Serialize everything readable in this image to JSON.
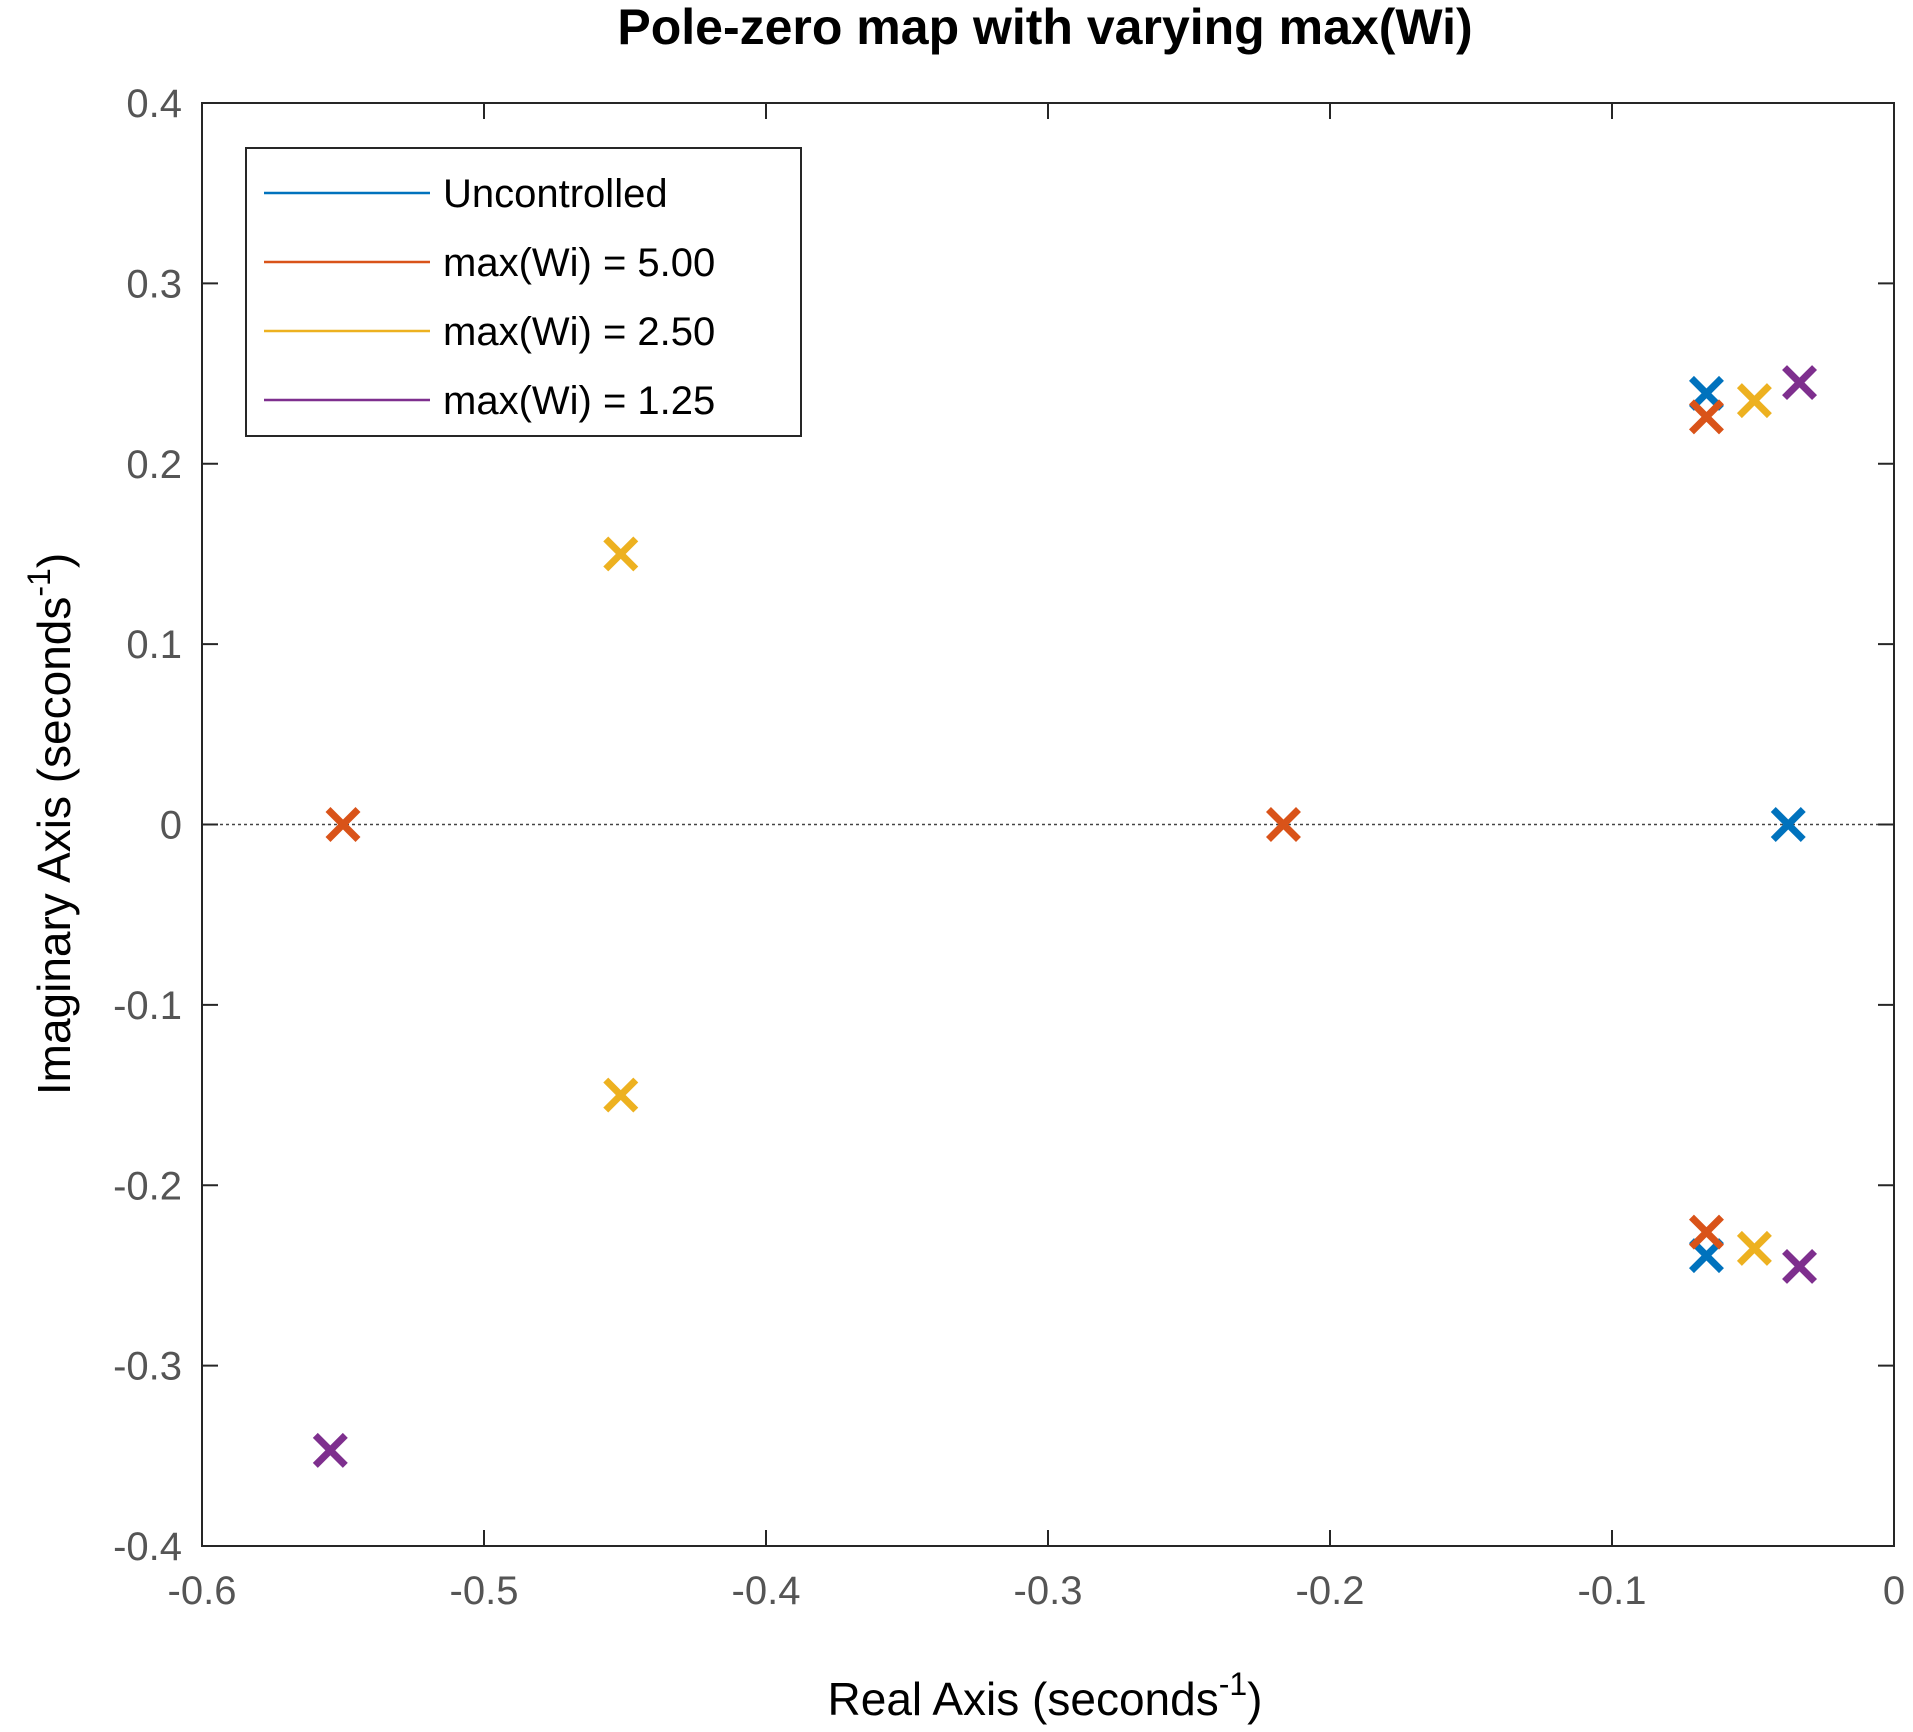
{
  "chart_data": {
    "type": "scatter",
    "title": "Pole-zero map with varying max(Wi)",
    "xlabel": "Real Axis (seconds",
    "xlabel_sup": "-1",
    "xlabel_end": ")",
    "ylabel": "Imaginary Axis (seconds",
    "ylabel_sup": "-1",
    "ylabel_end": ")",
    "xlim": [
      -0.6,
      0
    ],
    "ylim": [
      -0.4,
      0.4
    ],
    "xticks": [
      "-0.6",
      "-0.5",
      "-0.4",
      "-0.3",
      "-0.2",
      "-0.1",
      "0"
    ],
    "yticks": [
      "0.4",
      "0.3",
      "0.2",
      "0.1",
      "0",
      "-0.1",
      "-0.2",
      "-0.3",
      "-0.4"
    ],
    "xtick_values": [
      -0.6,
      -0.5,
      -0.4,
      -0.3,
      -0.2,
      -0.1,
      0
    ],
    "ytick_values": [
      0.4,
      0.3,
      0.2,
      0.1,
      0,
      -0.1,
      -0.2,
      -0.3,
      -0.4
    ],
    "grid": false,
    "legend_position": "top-left",
    "marker": "x",
    "series": [
      {
        "name": "Uncontrolled",
        "color": "#0072BD",
        "points": [
          [
            -0.0665,
            0.239
          ],
          [
            -0.0665,
            -0.239
          ],
          [
            -0.0375,
            0.0
          ]
        ]
      },
      {
        "name": "max(Wi) = 5.00",
        "color": "#D95319",
        "points": [
          [
            -0.55,
            0.0
          ],
          [
            -0.2165,
            0.0
          ],
          [
            -0.0665,
            0.226
          ],
          [
            -0.0665,
            -0.226
          ]
        ]
      },
      {
        "name": "max(Wi) = 2.50",
        "color": "#EDB120",
        "points": [
          [
            -0.4515,
            0.15
          ],
          [
            -0.4515,
            -0.15
          ],
          [
            -0.0495,
            0.235
          ],
          [
            -0.0495,
            -0.235
          ]
        ]
      },
      {
        "name": "max(Wi) = 1.25",
        "color": "#7E2F8E",
        "points": [
          [
            -0.5545,
            -0.347
          ],
          [
            -0.0335,
            0.245
          ],
          [
            -0.0335,
            -0.245
          ]
        ]
      }
    ]
  }
}
